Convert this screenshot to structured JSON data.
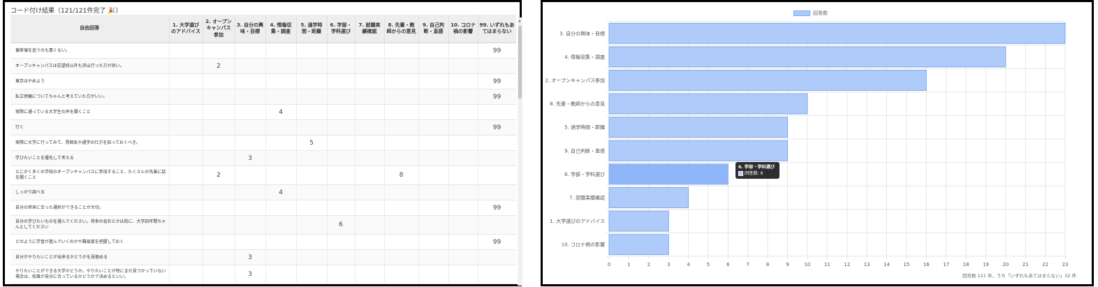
{
  "table_panel": {
    "title": "コード付け結果（121/121件完了 🎉）",
    "columns": [
      "自由回答",
      "1. 大学選びのアドバイス",
      "2. オープンキャンパス参加",
      "3. 自分の興味・目標",
      "4. 情報収集・調査",
      "5. 通学時間・距離",
      "6. 学部・学科選び",
      "7. 就職実績確認",
      "8. 先輩・教師からの意見",
      "9. 自己判断・直感",
      "10. コロナ禍の影響",
      "99. いずれもあてはまらない"
    ],
    "rows": [
      {
        "text": "偏差値を追うのも悪くない。",
        "cells": [
          "",
          "",
          "",
          "",
          "",
          "",
          "",
          "",
          "",
          "",
          "99"
        ]
      },
      {
        "text": "オープンキャンパスは志望校以外も沢山行った方が良い。",
        "cells": [
          "",
          "2",
          "",
          "",
          "",
          "",
          "",
          "",
          "",
          "",
          ""
        ]
      },
      {
        "text": "東京はやめよう",
        "cells": [
          "",
          "",
          "",
          "",
          "",
          "",
          "",
          "",
          "",
          "",
          "99"
        ]
      },
      {
        "text": "私立併願についてちゃんと考えていた方がいい。",
        "cells": [
          "",
          "",
          "",
          "",
          "",
          "",
          "",
          "",
          "",
          "",
          "99"
        ]
      },
      {
        "text": "実際に通っている大学生の声を聞くこと",
        "cells": [
          "",
          "",
          "",
          "4",
          "",
          "",
          "",
          "",
          "",
          "",
          ""
        ]
      },
      {
        "text": "行く",
        "cells": [
          "",
          "",
          "",
          "",
          "",
          "",
          "",
          "",
          "",
          "",
          "99"
        ]
      },
      {
        "text": "実際に大学に行ってみて、雰囲気や通学の仕方を知っておくべき。",
        "cells": [
          "",
          "",
          "",
          "",
          "5",
          "",
          "",
          "",
          "",
          "",
          ""
        ]
      },
      {
        "text": "学びたいことを優先して考える",
        "cells": [
          "",
          "",
          "3",
          "",
          "",
          "",
          "",
          "",
          "",
          "",
          ""
        ]
      },
      {
        "text": "とにかく多くの学校のオープンキャンパスに参加すること、たくさんの先輩に話を聞くこと",
        "cells": [
          "",
          "2",
          "",
          "",
          "",
          "",
          "",
          "8",
          "",
          "",
          ""
        ],
        "tall": true
      },
      {
        "text": "しっかり調べる",
        "cells": [
          "",
          "",
          "",
          "4",
          "",
          "",
          "",
          "",
          "",
          "",
          ""
        ]
      },
      {
        "text": "自分の将来に合った選択ができることが大切。",
        "cells": [
          "",
          "",
          "",
          "",
          "",
          "",
          "",
          "",
          "",
          "",
          "99"
        ]
      },
      {
        "text": "自分の学びたいものを選んでください。将来の会社とかは前に、大学四年間ちゃんとしてください",
        "cells": [
          "",
          "",
          "",
          "",
          "",
          "6",
          "",
          "",
          "",
          "",
          ""
        ],
        "tall": true
      },
      {
        "text": "どのように学習が進んでいくのかや難易度を把握しておく",
        "cells": [
          "",
          "",
          "",
          "",
          "",
          "",
          "",
          "",
          "",
          "",
          "99"
        ]
      },
      {
        "text": "自分がやりたいことが出来るかどうかを見極める",
        "cells": [
          "",
          "",
          "3",
          "",
          "",
          "",
          "",
          "",
          "",
          "",
          ""
        ]
      },
      {
        "text": "やりたいことができる大学かどうか。やりたいことが特にまだ見つかっていない場合は、校風が自分に合っているかどうかで決めるといい。",
        "cells": [
          "",
          "",
          "3",
          "",
          "",
          "",
          "",
          "",
          "",
          "",
          ""
        ],
        "tall": true
      }
    ]
  },
  "chart_panel": {
    "legend_label": "回答数",
    "tooltip": {
      "title": "6. 学部・学科選び",
      "label": "回答数: 6"
    },
    "caption": "回答数 121 件、うち「いずれもあてはまらない」32 件",
    "colors": {
      "bar_fill": "#aecbfa",
      "bar_border": "#7fa8f0",
      "bar_highlight": "#8fb6f8",
      "grid": "#e6e6e6"
    }
  },
  "chart_data": {
    "type": "bar",
    "orientation": "horizontal",
    "categories": [
      "3. 自分の興味・目標",
      "4. 情報収集・調査",
      "2. オープンキャンパス参加",
      "8. 先輩・教師からの意見",
      "5. 通学時間・距離",
      "9. 自己判断・直感",
      "6. 学部・学科選び",
      "7. 就職実績確認",
      "1. 大学選びのアドバイス",
      "10. コロナ禍の影響"
    ],
    "series": [
      {
        "name": "回答数",
        "values": [
          23,
          20,
          16,
          10,
          9,
          9,
          6,
          4,
          3,
          3
        ]
      }
    ],
    "xlim": [
      0,
      23
    ],
    "xticks": [
      "0",
      "1",
      "2",
      "3",
      "4",
      "5",
      "6",
      "7",
      "8",
      "9",
      "10",
      "11",
      "12",
      "13",
      "14",
      "15",
      "16",
      "17",
      "18",
      "19",
      "20",
      "21",
      "22",
      "23"
    ],
    "grid": true,
    "legend": "top-center",
    "highlighted_category": "6. 学部・学科選び"
  }
}
